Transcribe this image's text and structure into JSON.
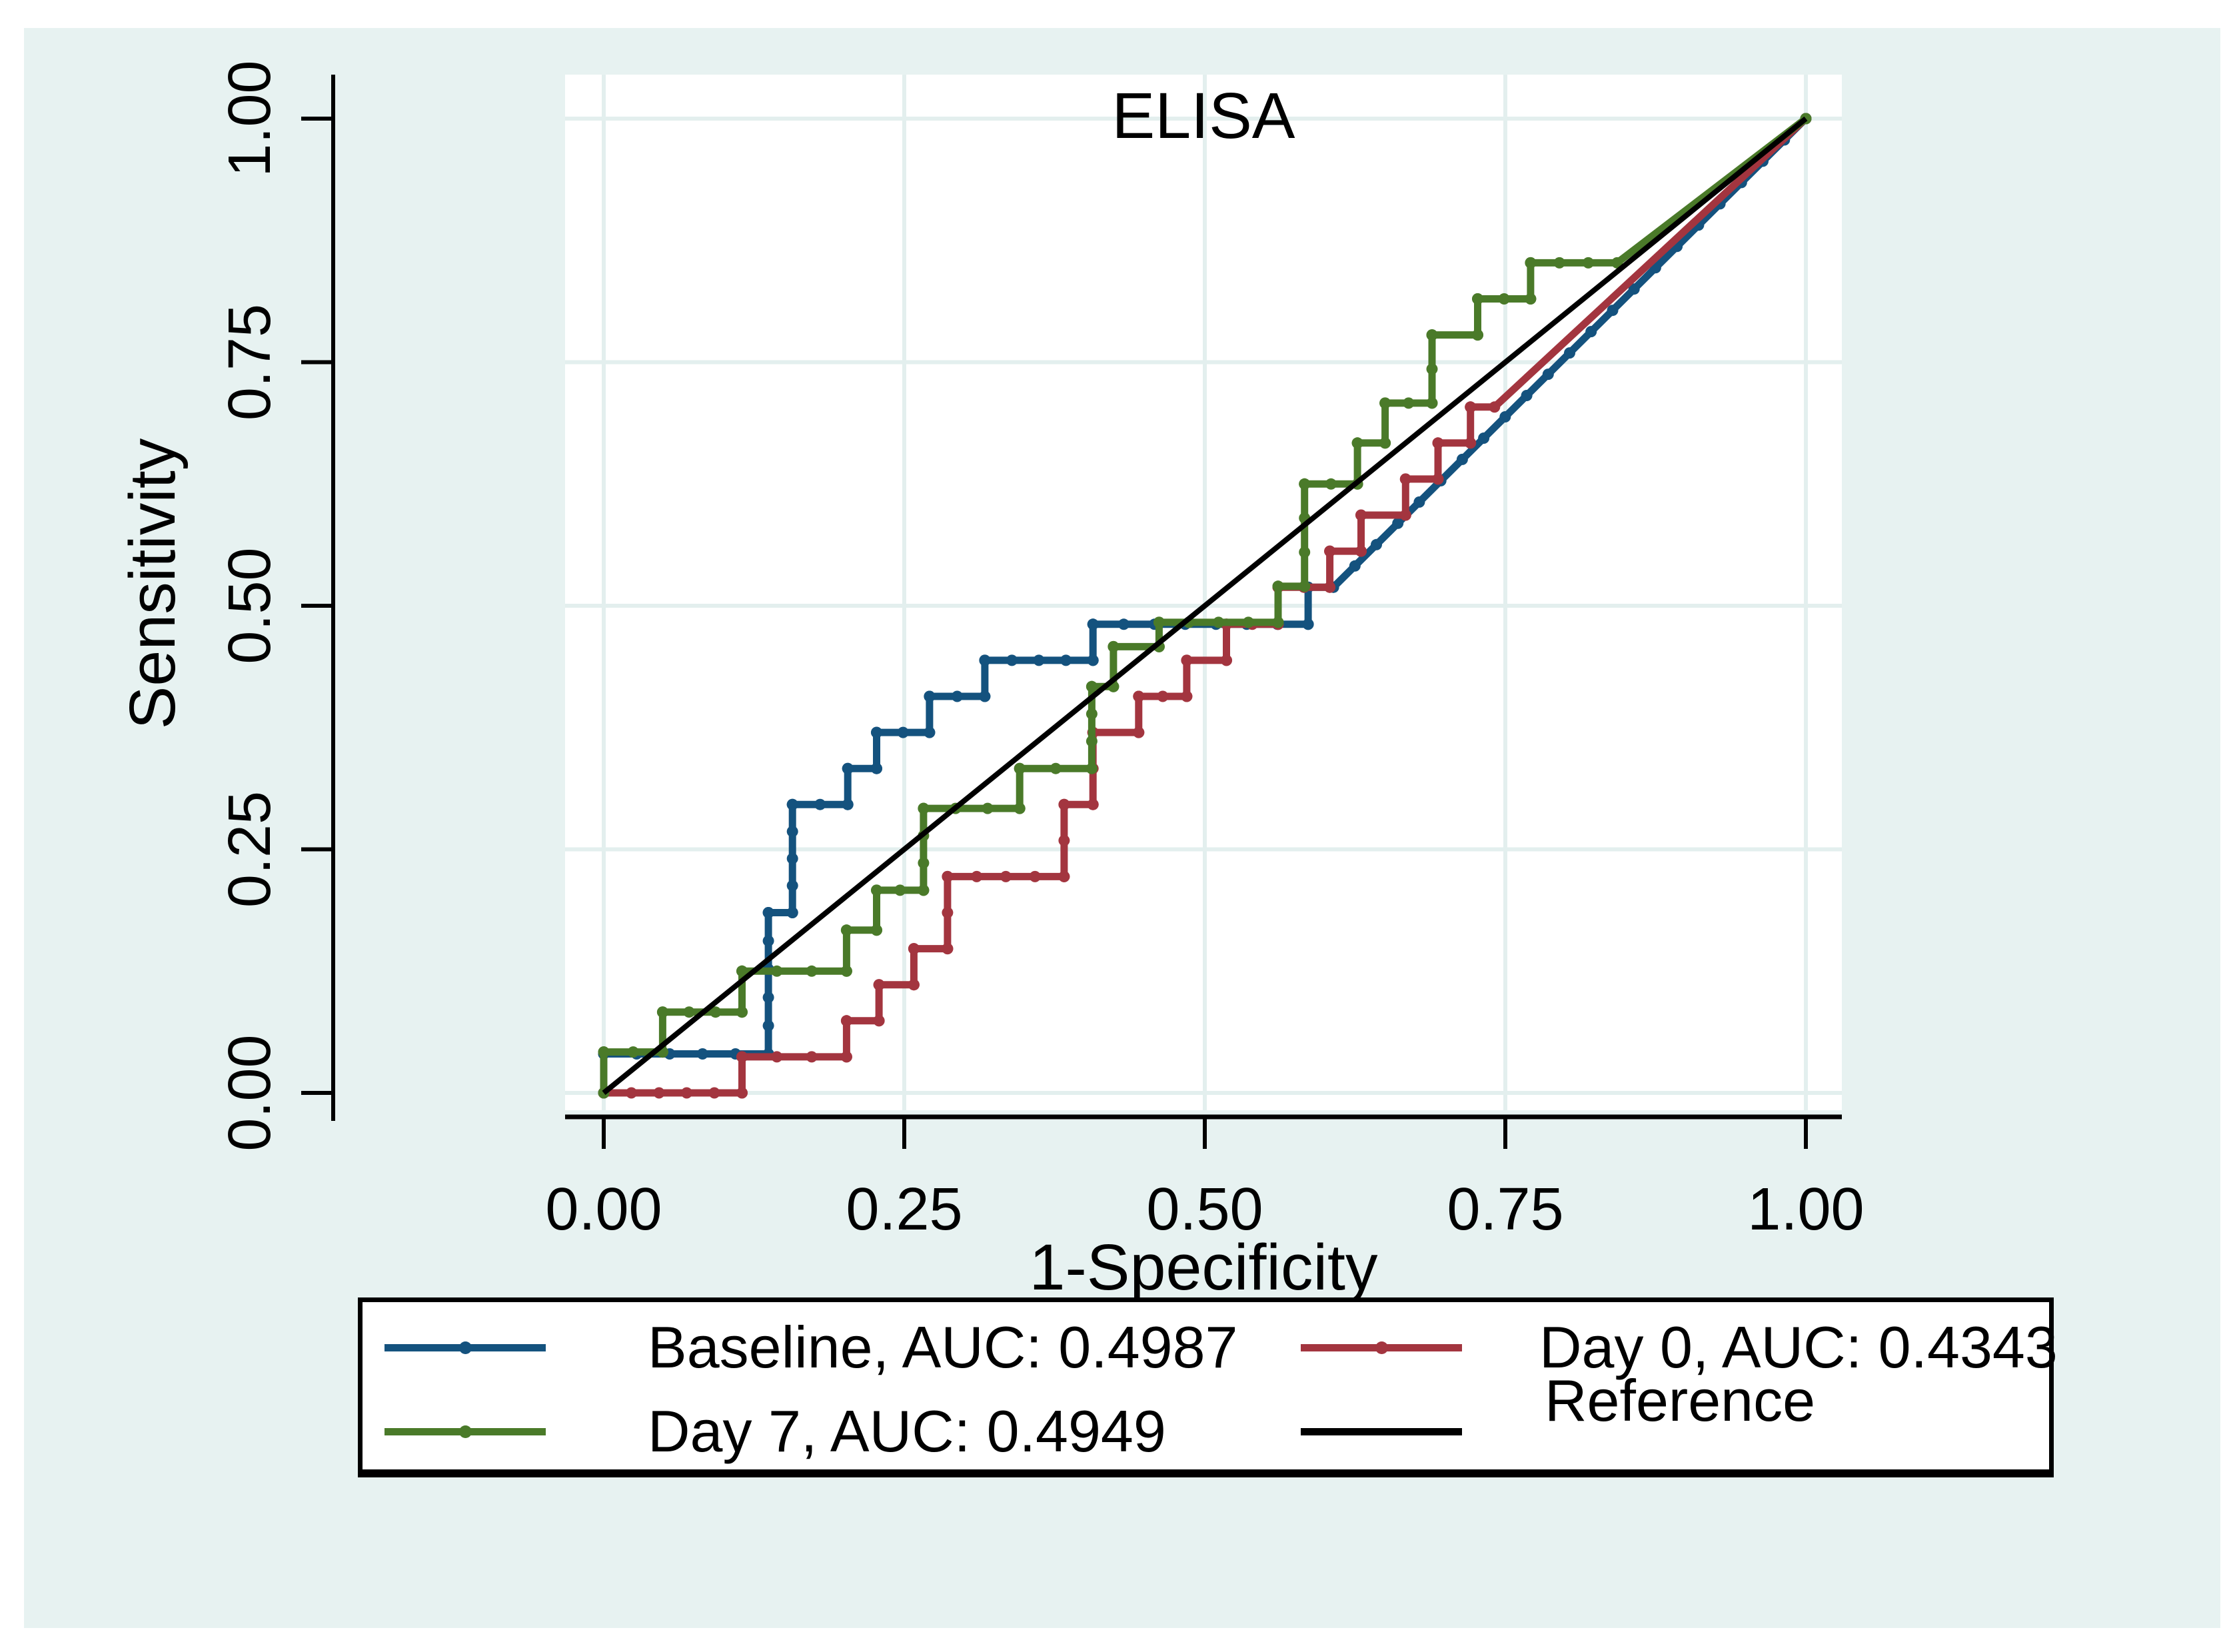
{
  "chart_data": {
    "type": "line",
    "title": "ELISA",
    "xlabel": "1-Specificity",
    "ylabel": "Sensitivity",
    "xlim": [
      0,
      1
    ],
    "ylim": [
      0,
      1
    ],
    "grid": true,
    "x_ticks": [
      0,
      0.25,
      0.5,
      0.75,
      1.0
    ],
    "y_ticks": [
      0,
      0.25,
      0.5,
      0.75,
      1.0
    ],
    "x_tick_labels": [
      "0.00",
      "0.25",
      "0.50",
      "0.75",
      "1.00"
    ],
    "y_tick_labels": [
      "0.00",
      "0.25",
      "0.50",
      "0.75",
      "1.00"
    ],
    "series": [
      {
        "name": "Baseline",
        "auc": 0.4987,
        "color": "#14527e",
        "markers": true,
        "tail_start": 19,
        "points": [
          [
            0,
            0
          ],
          [
            0,
            0.04
          ],
          [
            0.137,
            0.04
          ],
          [
            0.137,
            0.185
          ],
          [
            0.157,
            0.185
          ],
          [
            0.157,
            0.296
          ],
          [
            0.203,
            0.296
          ],
          [
            0.203,
            0.333
          ],
          [
            0.227,
            0.333
          ],
          [
            0.227,
            0.37
          ],
          [
            0.271,
            0.37
          ],
          [
            0.271,
            0.407
          ],
          [
            0.317,
            0.407
          ],
          [
            0.317,
            0.444
          ],
          [
            0.407,
            0.444
          ],
          [
            0.407,
            0.481
          ],
          [
            0.586,
            0.481
          ],
          [
            0.586,
            0.519
          ],
          [
            0.607,
            0.519
          ],
          [
            1,
            1
          ]
        ]
      },
      {
        "name": "Day 0",
        "auc": 0.4343,
        "color": "#a3353f",
        "markers": true,
        "tail_start": 33,
        "points": [
          [
            0,
            0
          ],
          [
            0.115,
            0
          ],
          [
            0.115,
            0.037
          ],
          [
            0.202,
            0.037
          ],
          [
            0.202,
            0.074
          ],
          [
            0.229,
            0.074
          ],
          [
            0.229,
            0.111
          ],
          [
            0.258,
            0.111
          ],
          [
            0.258,
            0.148
          ],
          [
            0.286,
            0.148
          ],
          [
            0.286,
            0.222
          ],
          [
            0.383,
            0.222
          ],
          [
            0.383,
            0.296
          ],
          [
            0.407,
            0.296
          ],
          [
            0.407,
            0.37
          ],
          [
            0.445,
            0.37
          ],
          [
            0.445,
            0.407
          ],
          [
            0.485,
            0.407
          ],
          [
            0.485,
            0.444
          ],
          [
            0.518,
            0.444
          ],
          [
            0.518,
            0.481
          ],
          [
            0.561,
            0.481
          ],
          [
            0.561,
            0.519
          ],
          [
            0.604,
            0.519
          ],
          [
            0.604,
            0.556
          ],
          [
            0.63,
            0.556
          ],
          [
            0.63,
            0.593
          ],
          [
            0.667,
            0.593
          ],
          [
            0.667,
            0.63
          ],
          [
            0.694,
            0.63
          ],
          [
            0.694,
            0.667
          ],
          [
            0.721,
            0.667
          ],
          [
            0.721,
            0.704
          ],
          [
            0.741,
            0.704
          ],
          [
            1,
            1
          ]
        ]
      },
      {
        "name": "Day 7",
        "auc": 0.4949,
        "color": "#4a7a29",
        "markers": true,
        "tail_start": 34,
        "points": [
          [
            0,
            0
          ],
          [
            0,
            0.042
          ],
          [
            0.049,
            0.042
          ],
          [
            0.049,
            0.083
          ],
          [
            0.115,
            0.083
          ],
          [
            0.115,
            0.125
          ],
          [
            0.202,
            0.125
          ],
          [
            0.202,
            0.167
          ],
          [
            0.227,
            0.167
          ],
          [
            0.227,
            0.208
          ],
          [
            0.266,
            0.208
          ],
          [
            0.266,
            0.292
          ],
          [
            0.346,
            0.292
          ],
          [
            0.346,
            0.333
          ],
          [
            0.406,
            0.333
          ],
          [
            0.406,
            0.417
          ],
          [
            0.424,
            0.417
          ],
          [
            0.424,
            0.458
          ],
          [
            0.462,
            0.458
          ],
          [
            0.462,
            0.483
          ],
          [
            0.561,
            0.483
          ],
          [
            0.561,
            0.52
          ],
          [
            0.583,
            0.52
          ],
          [
            0.583,
            0.625
          ],
          [
            0.627,
            0.625
          ],
          [
            0.627,
            0.667
          ],
          [
            0.65,
            0.667
          ],
          [
            0.65,
            0.708
          ],
          [
            0.689,
            0.708
          ],
          [
            0.689,
            0.778
          ],
          [
            0.727,
            0.778
          ],
          [
            0.727,
            0.815
          ],
          [
            0.771,
            0.815
          ],
          [
            0.771,
            0.852
          ],
          [
            0.843,
            0.852
          ],
          [
            1,
            1
          ]
        ]
      },
      {
        "name": "Reference",
        "color": "#000000",
        "markers": false,
        "tail_start": 0,
        "points": [
          [
            0,
            0
          ],
          [
            1,
            1
          ]
        ]
      }
    ]
  },
  "titles": {
    "plot": "ELISA",
    "x_axis": "1-Specificity",
    "y_axis": "Sensitivity"
  },
  "axes": {
    "x": {
      "tick_labels": [
        "0.00",
        "0.25",
        "0.50",
        "0.75",
        "1.00"
      ]
    },
    "y": {
      "tick_labels": [
        "0.00",
        "0.25",
        "0.50",
        "0.75",
        "1.00"
      ]
    }
  },
  "legend": {
    "items": [
      {
        "label": "Baseline, AUC: 0.4987",
        "series": "Baseline",
        "color": "#14527e",
        "marker": true
      },
      {
        "label": "Day 0, AUC: 0.4343",
        "series": "Day 0",
        "color": "#a3353f",
        "marker": true
      },
      {
        "label": "Day 7, AUC: 0.4949",
        "series": "Day 7",
        "color": "#4a7a29",
        "marker": true
      },
      {
        "label": "Reference",
        "series": "Reference",
        "color": "#000000",
        "marker": false
      }
    ]
  },
  "style_colors": {
    "graph_background": "#e7f2f1",
    "plot_background": "#ffffff",
    "gridline": "#e3efee",
    "axis": "#000000"
  }
}
